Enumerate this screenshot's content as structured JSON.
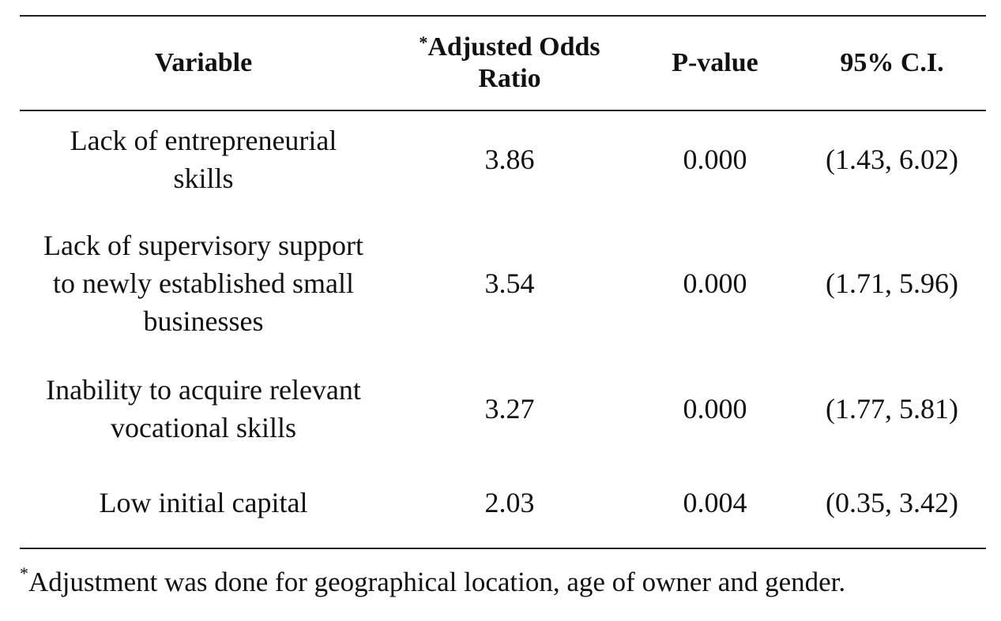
{
  "table": {
    "columns": [
      {
        "label": "Variable"
      },
      {
        "mark": "*",
        "label": "Adjusted Odds Ratio"
      },
      {
        "label": "P-value"
      },
      {
        "label": "95% C.I."
      }
    ],
    "rows": [
      [
        "Lack of entrepreneurial skills",
        "3.86",
        "0.000",
        "(1.43, 6.02)"
      ],
      [
        "Lack of supervisory support to newly established small businesses",
        "3.54",
        "0.000",
        "(1.71, 5.96)"
      ],
      [
        "Inability to acquire relevant vocational skills",
        "3.27",
        "0.000",
        "(1.77, 5.81)"
      ],
      [
        "Low initial capital",
        "2.03",
        "0.004",
        "(0.35, 3.42)"
      ]
    ],
    "footnote": {
      "mark": "*",
      "text": "Adjustment was done for geographical location, age of owner and gender."
    }
  }
}
